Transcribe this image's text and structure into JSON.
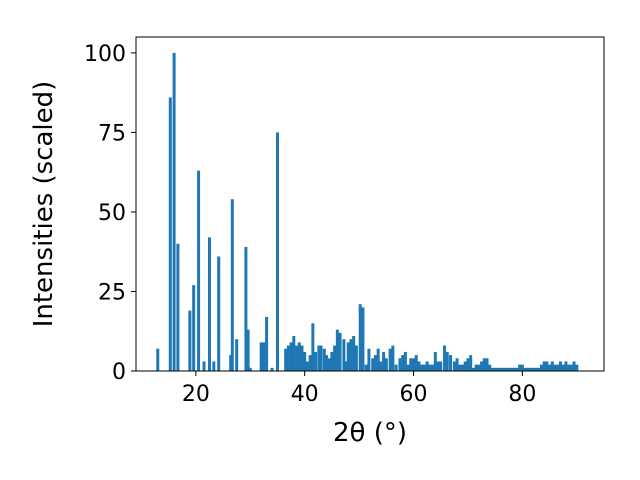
{
  "chart_data": {
    "type": "bar",
    "xlabel": "2θ (°)",
    "ylabel": "Intensities (scaled)",
    "xlim": [
      9,
      95
    ],
    "ylim": [
      0,
      105
    ],
    "xticks": [
      20,
      40,
      60,
      80
    ],
    "yticks": [
      0,
      25,
      50,
      75,
      100
    ],
    "grid": false,
    "bar_color": "#1f77b4",
    "bar_width": 0.55,
    "x": [
      13.0,
      15.3,
      16.0,
      16.7,
      18.9,
      19.6,
      20.5,
      21.5,
      22.5,
      23.3,
      24.2,
      26.4,
      26.7,
      27.5,
      29.2,
      29.6,
      30.0,
      32.0,
      32.5,
      33.0,
      34.0,
      35.0,
      36.5,
      37.0,
      37.5,
      38.0,
      38.5,
      39.0,
      39.5,
      40.0,
      40.5,
      41.0,
      41.5,
      42.0,
      42.6,
      43.0,
      43.6,
      44.0,
      44.5,
      45.0,
      45.5,
      46.0,
      46.5,
      47.2,
      47.5,
      48.0,
      48.5,
      49.0,
      49.5,
      50.2,
      50.7,
      51.3,
      51.8,
      52.5,
      53.0,
      53.5,
      54.0,
      54.5,
      55.0,
      55.7,
      56.2,
      56.8,
      57.5,
      58.0,
      58.5,
      59.0,
      59.5,
      60.0,
      60.5,
      61.0,
      61.5,
      62.0,
      62.5,
      63.0,
      63.5,
      64.0,
      64.5,
      65.0,
      65.7,
      66.2,
      66.8,
      67.5,
      68.0,
      68.5,
      69.0,
      69.5,
      70.0,
      70.5,
      71.0,
      71.5,
      72.0,
      72.5,
      73.0,
      73.5,
      74.0,
      74.5,
      75.0,
      75.5,
      76.0,
      76.5,
      77.0,
      77.5,
      78.0,
      78.5,
      79.0,
      79.5,
      80.0,
      80.5,
      81.0,
      81.5,
      82.0,
      82.5,
      83.0,
      83.5,
      84.0,
      84.5,
      85.0,
      85.5,
      86.0,
      86.5,
      87.0,
      87.5,
      88.0,
      88.5,
      89.0,
      89.5,
      90.0
    ],
    "values": [
      7,
      86,
      100,
      40,
      19,
      27,
      63,
      3,
      42,
      3,
      36,
      5,
      54,
      10,
      39,
      13,
      1,
      9,
      9,
      17,
      1,
      75,
      7,
      8,
      9,
      11,
      8,
      9,
      8,
      6,
      3,
      5,
      15,
      6,
      8,
      8,
      7,
      5,
      4,
      6,
      8,
      13,
      12,
      10,
      3,
      9,
      10,
      11,
      8,
      21,
      20,
      2,
      7,
      4,
      5,
      7,
      3,
      6,
      4,
      7,
      8,
      2,
      4,
      5,
      6,
      2,
      4,
      4,
      5,
      3,
      2,
      2,
      3,
      2,
      2,
      6,
      3,
      3,
      8,
      6,
      5,
      3,
      4,
      2,
      2,
      3,
      4,
      5,
      1,
      2,
      2,
      3,
      4,
      4,
      2,
      1,
      1,
      1,
      1,
      1,
      1,
      1,
      1,
      1,
      1,
      2,
      2,
      1,
      1,
      1,
      1,
      1,
      1,
      2,
      3,
      3,
      2,
      3,
      2,
      2,
      3,
      2,
      3,
      2,
      2,
      3,
      2
    ]
  }
}
